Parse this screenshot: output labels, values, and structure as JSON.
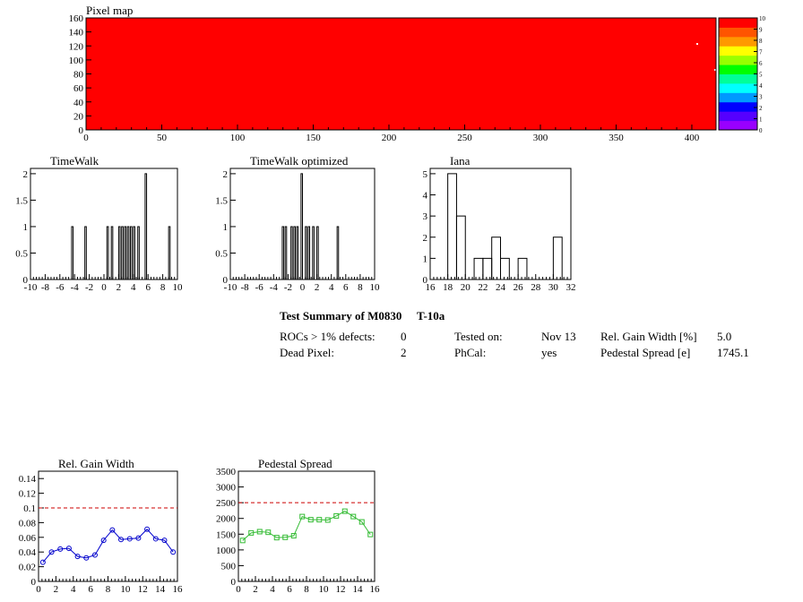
{
  "chart_data": [
    {
      "type": "heatmap",
      "title": "Pixel map",
      "x_ticks": [
        "0",
        "50",
        "100",
        "150",
        "200",
        "250",
        "300",
        "350",
        "400"
      ],
      "y_ticks": [
        "0",
        "20",
        "40",
        "60",
        "80",
        "100",
        "120",
        "140",
        "160"
      ],
      "xlim": [
        0,
        416
      ],
      "ylim": [
        0,
        160
      ],
      "fill_color": "#ff0000",
      "palette_labels": [
        "0",
        "1",
        "2",
        "3",
        "4",
        "5",
        "6",
        "7",
        "8",
        "9",
        "10"
      ],
      "palette_colors": [
        "#9900ff",
        "#5500ff",
        "#0000ff",
        "#0099ff",
        "#00ffff",
        "#00ff99",
        "#00ff00",
        "#99ff00",
        "#ffff00",
        "#ff9900",
        "#ff5500",
        "#ff0000"
      ]
    },
    {
      "type": "bar",
      "title": "TimeWalk",
      "xlim": [
        -10,
        10
      ],
      "ylim": [
        0,
        2.1
      ],
      "x_ticks": [
        "-10",
        "-8",
        "-6",
        "-4",
        "-2",
        "0",
        "2",
        "4",
        "6",
        "8",
        "10"
      ],
      "y_ticks": [
        "0",
        "0.5",
        "1",
        "1.5",
        "2"
      ],
      "bin_width": 0.2,
      "bins": [
        {
          "x": -4.4,
          "value": 1
        },
        {
          "x": -2.6,
          "value": 1
        },
        {
          "x": 0.4,
          "value": 1
        },
        {
          "x": 1.0,
          "value": 1
        },
        {
          "x": 2.0,
          "value": 1
        },
        {
          "x": 2.4,
          "value": 1
        },
        {
          "x": 2.8,
          "value": 1
        },
        {
          "x": 3.2,
          "value": 1
        },
        {
          "x": 3.6,
          "value": 1
        },
        {
          "x": 4.0,
          "value": 1
        },
        {
          "x": 4.6,
          "value": 1
        },
        {
          "x": 5.6,
          "value": 2
        },
        {
          "x": 8.8,
          "value": 1
        }
      ]
    },
    {
      "type": "bar",
      "title": "TimeWalk optimized",
      "xlim": [
        -10,
        10
      ],
      "ylim": [
        0,
        2.1
      ],
      "x_ticks": [
        "-10",
        "-8",
        "-6",
        "-4",
        "-2",
        "0",
        "2",
        "4",
        "6",
        "8",
        "10"
      ],
      "y_ticks": [
        "0",
        "0.5",
        "1",
        "1.5",
        "2"
      ],
      "bin_width": 0.2,
      "bins": [
        {
          "x": -2.8,
          "value": 1
        },
        {
          "x": -2.4,
          "value": 1
        },
        {
          "x": -1.6,
          "value": 1
        },
        {
          "x": -1.2,
          "value": 1
        },
        {
          "x": -0.8,
          "value": 1
        },
        {
          "x": -0.2,
          "value": 2
        },
        {
          "x": 0.4,
          "value": 1
        },
        {
          "x": 0.8,
          "value": 1
        },
        {
          "x": 1.4,
          "value": 1
        },
        {
          "x": 2.0,
          "value": 1
        },
        {
          "x": 4.8,
          "value": 1
        }
      ]
    },
    {
      "type": "bar",
      "title": "Iana",
      "xlim": [
        16,
        32
      ],
      "ylim": [
        0,
        5.25
      ],
      "x_ticks": [
        "16",
        "18",
        "20",
        "22",
        "24",
        "26",
        "28",
        "30",
        "32"
      ],
      "y_ticks": [
        "0",
        "1",
        "2",
        "3",
        "4",
        "5"
      ],
      "bin_width": 1,
      "bins": [
        {
          "x": 18,
          "value": 5
        },
        {
          "x": 19,
          "value": 3
        },
        {
          "x": 20,
          "value": 0
        },
        {
          "x": 21,
          "value": 1
        },
        {
          "x": 22,
          "value": 1
        },
        {
          "x": 23,
          "value": 2
        },
        {
          "x": 24,
          "value": 1
        },
        {
          "x": 25,
          "value": 0
        },
        {
          "x": 26,
          "value": 1
        },
        {
          "x": 27,
          "value": 0
        },
        {
          "x": 28,
          "value": 0
        },
        {
          "x": 29,
          "value": 0
        },
        {
          "x": 30,
          "value": 2
        }
      ]
    },
    {
      "type": "line",
      "title": "Rel. Gain Width",
      "xlim": [
        0,
        16
      ],
      "ylim": [
        0,
        0.15
      ],
      "x_ticks": [
        "0",
        "2",
        "4",
        "6",
        "8",
        "10",
        "12",
        "14",
        "16"
      ],
      "y_ticks": [
        "0",
        "0.02",
        "0.04",
        "0.06",
        "0.08",
        "0.1",
        "0.12",
        "0.14"
      ],
      "threshold": 0.1,
      "threshold_color": "#cc0000",
      "series_color": "#0000cc",
      "x": [
        0.5,
        1.5,
        2.5,
        3.5,
        4.5,
        5.5,
        6.5,
        7.5,
        8.5,
        9.5,
        10.5,
        11.5,
        12.5,
        13.5,
        14.5,
        15.5
      ],
      "values": [
        0.026,
        0.04,
        0.044,
        0.045,
        0.034,
        0.032,
        0.036,
        0.056,
        0.07,
        0.057,
        0.058,
        0.059,
        0.071,
        0.058,
        0.056,
        0.04
      ]
    },
    {
      "type": "line",
      "title": "Pedestal Spread",
      "xlim": [
        0,
        16
      ],
      "ylim": [
        0,
        3500
      ],
      "x_ticks": [
        "0",
        "2",
        "4",
        "6",
        "8",
        "10",
        "12",
        "14",
        "16"
      ],
      "y_ticks": [
        "0",
        "500",
        "1000",
        "1500",
        "2000",
        "2500",
        "3000",
        "3500"
      ],
      "threshold": 2500,
      "threshold_color": "#cc0000",
      "series_color": "#33bb33",
      "x": [
        0.5,
        1.5,
        2.5,
        3.5,
        4.5,
        5.5,
        6.5,
        7.5,
        8.5,
        9.5,
        10.5,
        11.5,
        12.5,
        13.5,
        14.5,
        15.5
      ],
      "values": [
        1300,
        1540,
        1580,
        1560,
        1390,
        1400,
        1450,
        2060,
        1960,
        1960,
        1950,
        2080,
        2230,
        2060,
        1890,
        1490
      ]
    }
  ],
  "summary": {
    "title": "Test Summary of M0830",
    "test_id": "T-10a",
    "rocs_label": "ROCs > 1% defects:",
    "rocs_value": "0",
    "dead_label": "Dead Pixel:",
    "dead_value": "2",
    "tested_label": "Tested on:",
    "tested_value": "Nov 13",
    "phcal_label": "PhCal:",
    "phcal_value": "yes",
    "gain_label": "Rel. Gain Width [%]",
    "gain_value": "5.0",
    "ped_label": "Pedestal Spread [e]",
    "ped_value": "1745.1"
  }
}
